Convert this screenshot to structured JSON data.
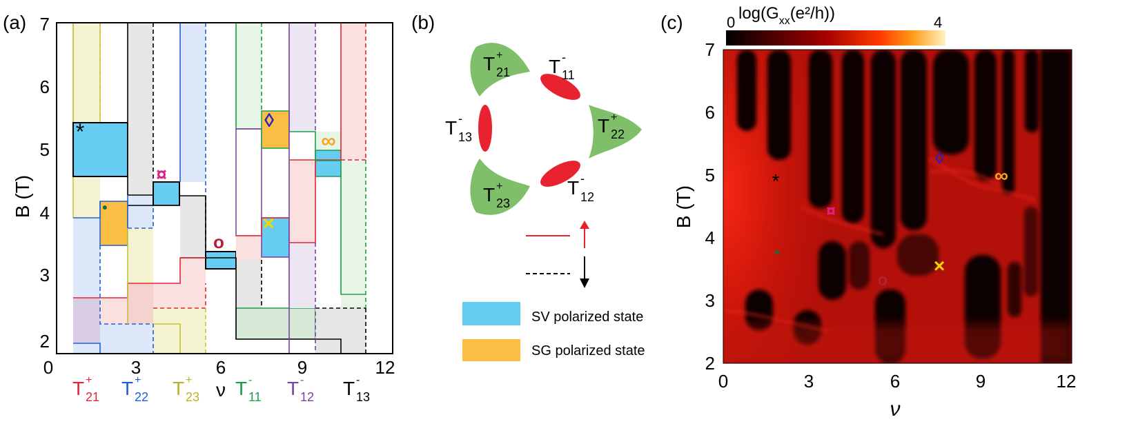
{
  "panels": {
    "a": {
      "label": "(a)",
      "ylabel": "B (T)",
      "xlabel": "ν",
      "yticks": [
        "2",
        "3",
        "4",
        "5",
        "6",
        "7"
      ],
      "xticks": [
        "0",
        "3",
        "6",
        "9",
        "12"
      ],
      "symbols": [
        {
          "glyph": "*",
          "color": "#000000"
        },
        {
          "glyph": "¤",
          "color": "#e0218a"
        },
        {
          "glyph": "o",
          "color": "#b22234"
        },
        {
          "glyph": "◊",
          "color": "#2a1fbf"
        },
        {
          "glyph": "∞",
          "color": "#f5a623"
        },
        {
          "glyph": "×",
          "color": "#f2d600"
        },
        {
          "glyph": "●",
          "color": "#1e6b3a"
        }
      ],
      "bottom_labels": [
        {
          "base": "T",
          "sup": "+",
          "sub": "21",
          "color": "#e32636"
        },
        {
          "base": "T",
          "sup": "+",
          "sub": "22",
          "color": "#1f5fd1"
        },
        {
          "base": "T",
          "sup": "+",
          "sub": "23",
          "color": "#b7b329"
        },
        {
          "base": "T",
          "sup": "-",
          "sub": "11",
          "color": "#1a9e4a"
        },
        {
          "base": "T",
          "sup": "-",
          "sub": "12",
          "color": "#7b3fa0"
        },
        {
          "base": "T",
          "sup": "-",
          "sub": "13",
          "color": "#000000"
        }
      ]
    },
    "b": {
      "label": "(b)",
      "valleys": [
        {
          "base": "T",
          "sup": "+",
          "sub": "21"
        },
        {
          "base": "T",
          "sup": "-",
          "sub": "11"
        },
        {
          "base": "T",
          "sup": "-",
          "sub": "13"
        },
        {
          "base": "T",
          "sup": "+",
          "sub": "22"
        },
        {
          "base": "T",
          "sup": "+",
          "sub": "23"
        },
        {
          "base": "T",
          "sup": "-",
          "sub": "12"
        }
      ],
      "legend": [
        {
          "label": "SV polarized state",
          "color": "#66ccf2"
        },
        {
          "label": "SG polarized state",
          "color": "#fbbf45"
        }
      ],
      "colors": {
        "valley_plus": "#7fbf6a",
        "valley_minus": "#e8222e"
      }
    },
    "c": {
      "label": "(c)",
      "colorbar_title": "log(G",
      "colorbar_title_sub": "xx",
      "colorbar_title_rest": "(e²/h))",
      "colorbar_min": "0",
      "colorbar_max": "4",
      "ylabel": "B (T)",
      "xlabel": "ν",
      "yticks": [
        "2",
        "3",
        "4",
        "5",
        "6",
        "7"
      ],
      "xticks": [
        "0",
        "3",
        "6",
        "9",
        "12"
      ],
      "markers": [
        {
          "glyph": "*",
          "color": "#000000"
        },
        {
          "glyph": "¤",
          "color": "#e0218a"
        },
        {
          "glyph": "●",
          "color": "#1e6b3a"
        },
        {
          "glyph": "o",
          "color": "#b22234"
        },
        {
          "glyph": "◊",
          "color": "#2a1fbf"
        },
        {
          "glyph": "∞",
          "color": "#f5a623"
        },
        {
          "glyph": "×",
          "color": "#f2d600"
        }
      ]
    }
  }
}
